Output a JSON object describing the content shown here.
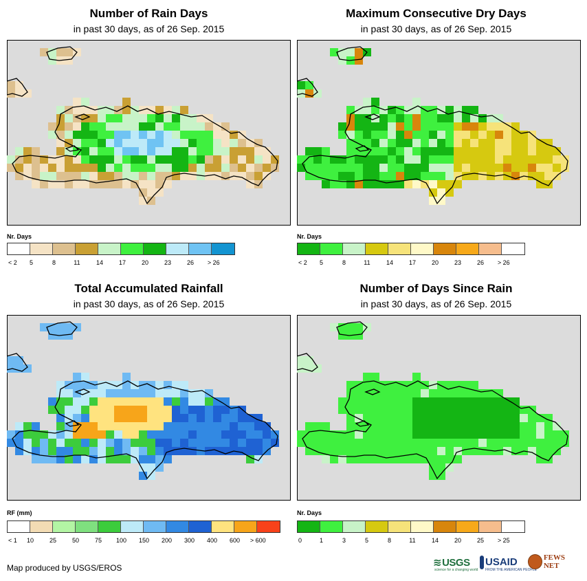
{
  "panels": [
    {
      "id": "rain_days",
      "title": "Number of Rain Days",
      "subtitle": "in past 30 days, as of 26 Sep. 2015",
      "legend_title": "Nr. Days",
      "legend_colors": [
        "#ffffff",
        "#f5e3c5",
        "#ddc08f",
        "#c9a034",
        "#c8f3c8",
        "#3ff03f",
        "#14b514",
        "#bdeaf8",
        "#6fc3f3",
        "#1394d1"
      ],
      "legend_labels": [
        "< 2",
        "5",
        "8",
        "11",
        "14",
        "17",
        "20",
        "23",
        "26",
        "> 26"
      ]
    },
    {
      "id": "max_cdd",
      "title": "Maximum Consecutive Dry Days",
      "subtitle": "in past 30 days, as of 26 Sep. 2015",
      "legend_title": "Nr. Days",
      "legend_colors": [
        "#14b514",
        "#3ff03f",
        "#c8f3c8",
        "#d6c910",
        "#f6e37a",
        "#fff9c8",
        "#d8860c",
        "#f7a91a",
        "#f6bd8d",
        "#ffffff"
      ],
      "legend_labels": [
        "< 2",
        "5",
        "8",
        "11",
        "14",
        "17",
        "20",
        "23",
        "26",
        "> 26"
      ]
    },
    {
      "id": "total_rf",
      "title": "Total Accumulated Rainfall",
      "subtitle": "in past 30 days, as of 26 Sep. 2015",
      "legend_title": "RF (mm)",
      "legend_colors": [
        "#ffffff",
        "#f3dcb4",
        "#b3f5a4",
        "#7fe07f",
        "#3ccc3c",
        "#bdeaf8",
        "#6fbaf3",
        "#3289e3",
        "#1f62d3",
        "#ffe37f",
        "#f7a51a",
        "#f8421a"
      ],
      "legend_labels": [
        "< 1",
        "10",
        "25",
        "50",
        "75",
        "100",
        "150",
        "200",
        "300",
        "400",
        "600",
        "> 600"
      ]
    },
    {
      "id": "days_since_rain",
      "title": "Number of Days Since Rain",
      "subtitle": "in past 30 days, as of 26 Sep. 2015",
      "legend_title": "Nr. Days",
      "legend_colors": [
        "#14b514",
        "#3ff03f",
        "#c8f3c8",
        "#d6c910",
        "#f6e37a",
        "#fff9c8",
        "#d8860c",
        "#f7a91a",
        "#f6bd8d",
        "#ffffff"
      ],
      "legend_labels": [
        "0",
        "1",
        "3",
        "5",
        "8",
        "11",
        "14",
        "20",
        "25",
        "> 25"
      ]
    }
  ],
  "footer": {
    "credit": "Map produced by USGS/EROS",
    "logos": {
      "usgs": "USGS",
      "usgs_tagline": "science for a changing world",
      "usaid": "USAID",
      "usaid_tagline": "FROM THE AMERICAN PEOPLE",
      "fews": "FEWS NET"
    }
  }
}
